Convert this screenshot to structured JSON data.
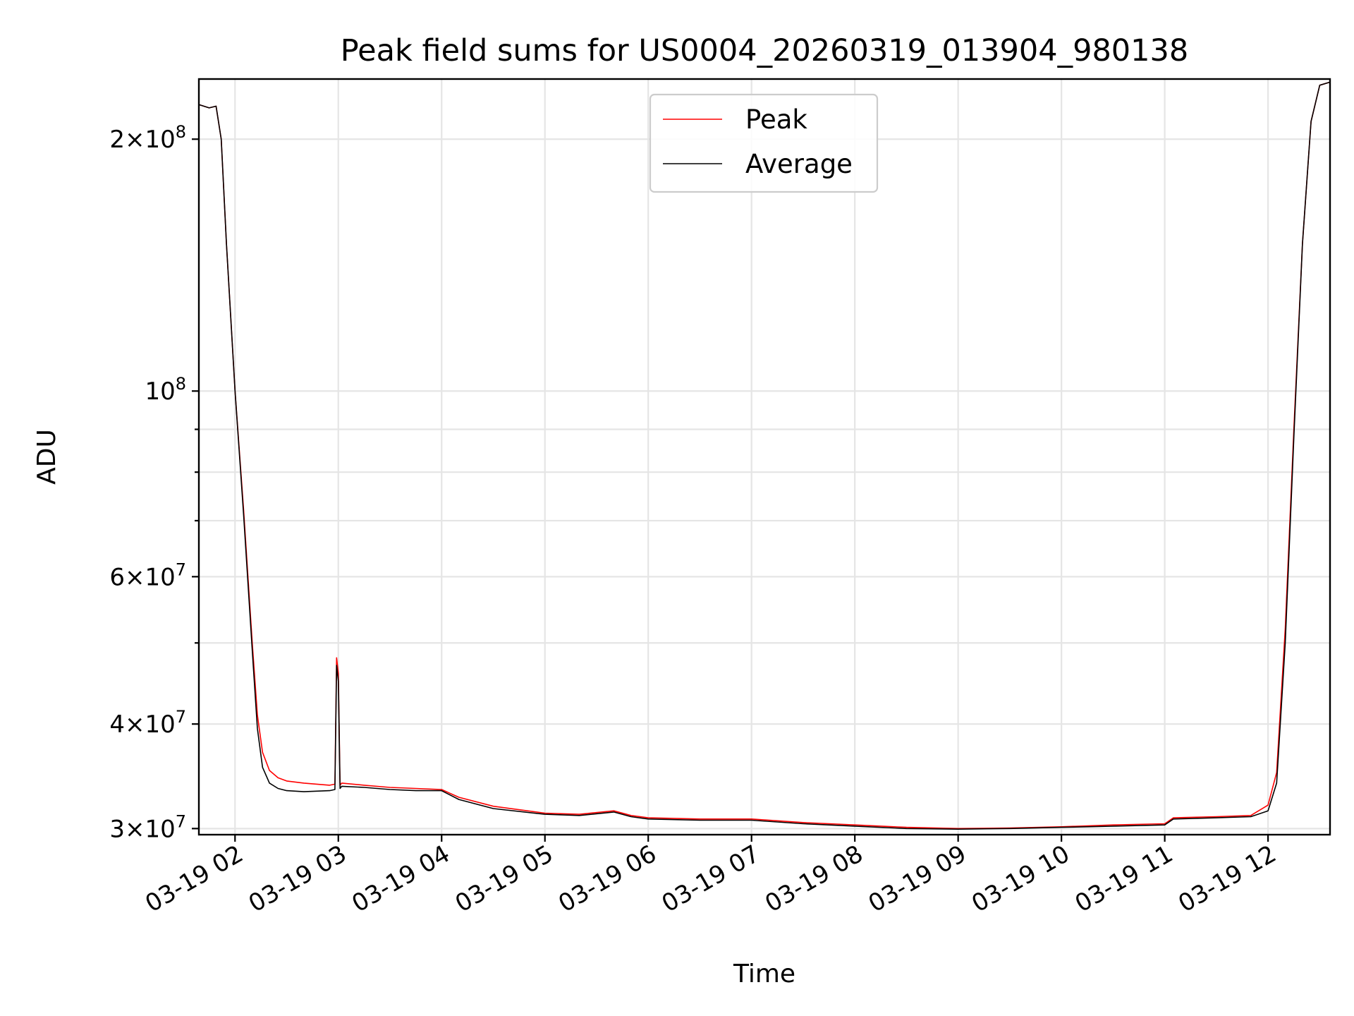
{
  "colors": {
    "peak": "#ff0000",
    "average": "#000000",
    "grid": "#e5e5e5",
    "background": "#ffffff"
  },
  "chart_data": {
    "type": "line",
    "title": "Peak field sums for US0004_20260319_013904_980138",
    "xlabel": "Time",
    "ylabel": "ADU",
    "yscale": "log",
    "xlim": [
      "03-19 01:39",
      "03-19 12:36"
    ],
    "ylim": [
      29500000,
      236000000
    ],
    "grid": true,
    "legend_position": "top-center",
    "x_ticks": [
      {
        "value": "03-19 02:00",
        "label": "03-19 02"
      },
      {
        "value": "03-19 03:00",
        "label": "03-19 03"
      },
      {
        "value": "03-19 04:00",
        "label": "03-19 04"
      },
      {
        "value": "03-19 05:00",
        "label": "03-19 05"
      },
      {
        "value": "03-19 06:00",
        "label": "03-19 06"
      },
      {
        "value": "03-19 07:00",
        "label": "03-19 07"
      },
      {
        "value": "03-19 08:00",
        "label": "03-19 08"
      },
      {
        "value": "03-19 09:00",
        "label": "03-19 09"
      },
      {
        "value": "03-19 10:00",
        "label": "03-19 10"
      },
      {
        "value": "03-19 11:00",
        "label": "03-19 11"
      },
      {
        "value": "03-19 12:00",
        "label": "03-19 12"
      }
    ],
    "y_ticks": [
      {
        "value": 30000000,
        "base": "3×10",
        "exp": "7"
      },
      {
        "value": 40000000,
        "base": "4×10",
        "exp": "7"
      },
      {
        "value": 60000000,
        "base": "6×10",
        "exp": "7"
      },
      {
        "value": 100000000,
        "base": "10",
        "exp": "8"
      },
      {
        "value": 200000000,
        "base": "2×10",
        "exp": "8"
      }
    ],
    "y_minor_ticks": [
      50000000,
      70000000,
      80000000,
      90000000
    ],
    "series": [
      {
        "name": "Peak",
        "color": "#ff0000",
        "x": [
          "03-19 01:39",
          "03-19 01:45",
          "03-19 01:49",
          "03-19 01:52",
          "03-19 01:55",
          "03-19 02:00",
          "03-19 02:05",
          "03-19 02:10",
          "03-19 02:13",
          "03-19 02:16",
          "03-19 02:20",
          "03-19 02:25",
          "03-19 02:30",
          "03-19 02:40",
          "03-19 02:55",
          "03-19 02:58",
          "03-19 02:59",
          "03-19 03:00",
          "03-19 03:01",
          "03-19 03:02",
          "03-19 03:15",
          "03-19 03:30",
          "03-19 03:45",
          "03-19 04:00",
          "03-19 04:10",
          "03-19 04:30",
          "03-19 05:00",
          "03-19 05:20",
          "03-19 05:40",
          "03-19 05:50",
          "03-19 06:00",
          "03-19 06:30",
          "03-19 07:00",
          "03-19 07:30",
          "03-19 08:00",
          "03-19 08:30",
          "03-19 09:00",
          "03-19 09:30",
          "03-19 10:00",
          "03-19 10:30",
          "03-19 11:00",
          "03-19 11:05",
          "03-19 11:30",
          "03-19 11:50",
          "03-19 12:00",
          "03-19 12:05",
          "03-19 12:10",
          "03-19 12:15",
          "03-19 12:20",
          "03-19 12:25",
          "03-19 12:30",
          "03-19 12:36"
        ],
        "values": [
          220000000,
          218000000,
          219000000,
          200000000,
          150000000,
          100000000,
          72000000,
          50000000,
          41000000,
          37000000,
          35200000,
          34500000,
          34200000,
          34000000,
          33800000,
          33900000,
          48000000,
          46000000,
          33800000,
          34000000,
          33800000,
          33600000,
          33500000,
          33400000,
          32700000,
          31900000,
          31300000,
          31200000,
          31500000,
          31100000,
          30900000,
          30800000,
          30800000,
          30500000,
          30300000,
          30100000,
          30000000,
          30050000,
          30150000,
          30300000,
          30400000,
          30900000,
          31000000,
          31100000,
          32000000,
          35000000,
          52000000,
          90000000,
          150000000,
          210000000,
          232000000,
          234000000
        ]
      },
      {
        "name": "Average",
        "color": "#000000",
        "x": [
          "03-19 01:39",
          "03-19 01:45",
          "03-19 01:49",
          "03-19 01:52",
          "03-19 01:55",
          "03-19 02:00",
          "03-19 02:05",
          "03-19 02:10",
          "03-19 02:13",
          "03-19 02:16",
          "03-19 02:20",
          "03-19 02:25",
          "03-19 02:30",
          "03-19 02:40",
          "03-19 02:55",
          "03-19 02:58",
          "03-19 02:59",
          "03-19 03:00",
          "03-19 03:01",
          "03-19 03:02",
          "03-19 03:15",
          "03-19 03:30",
          "03-19 03:45",
          "03-19 04:00",
          "03-19 04:10",
          "03-19 04:30",
          "03-19 05:00",
          "03-19 05:20",
          "03-19 05:40",
          "03-19 05:50",
          "03-19 06:00",
          "03-19 06:30",
          "03-19 07:00",
          "03-19 07:30",
          "03-19 08:00",
          "03-19 08:30",
          "03-19 09:00",
          "03-19 09:30",
          "03-19 10:00",
          "03-19 10:30",
          "03-19 11:00",
          "03-19 11:05",
          "03-19 11:30",
          "03-19 11:50",
          "03-19 12:00",
          "03-19 12:05",
          "03-19 12:10",
          "03-19 12:15",
          "03-19 12:20",
          "03-19 12:25",
          "03-19 12:30",
          "03-19 12:36"
        ],
        "values": [
          220000000,
          218000000,
          219000000,
          200000000,
          150000000,
          100000000,
          71000000,
          49000000,
          39500000,
          35500000,
          34000000,
          33500000,
          33300000,
          33200000,
          33300000,
          33400000,
          47000000,
          45000000,
          33500000,
          33700000,
          33600000,
          33400000,
          33300000,
          33300000,
          32500000,
          31700000,
          31200000,
          31100000,
          31400000,
          31000000,
          30800000,
          30700000,
          30700000,
          30400000,
          30200000,
          30000000,
          29950000,
          30000000,
          30100000,
          30200000,
          30300000,
          30800000,
          30900000,
          31000000,
          31500000,
          34000000,
          50000000,
          88000000,
          150000000,
          210000000,
          232000000,
          234000000
        ]
      }
    ]
  }
}
